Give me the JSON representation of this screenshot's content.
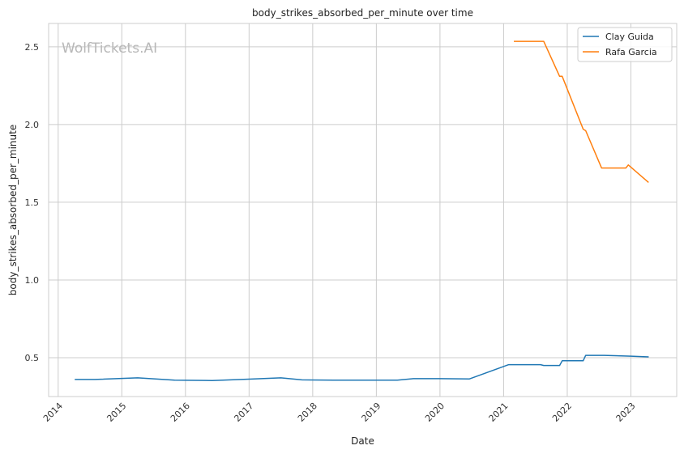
{
  "chart_data": {
    "type": "line",
    "title": "body_strikes_absorbed_per_minute over time",
    "xlabel": "Date",
    "ylabel": "body_strikes_absorbed_per_minute",
    "watermark": "WolfTickets.AI",
    "xlim": [
      2013.85,
      2023.72
    ],
    "ylim": [
      0.25,
      2.65
    ],
    "x_ticks": [
      2014,
      2015,
      2016,
      2017,
      2018,
      2019,
      2020,
      2021,
      2022,
      2023
    ],
    "x_tick_labels": [
      "2014",
      "2015",
      "2016",
      "2017",
      "2018",
      "2019",
      "2020",
      "2021",
      "2022",
      "2023"
    ],
    "y_ticks": [
      0.5,
      1.0,
      1.5,
      2.0,
      2.5
    ],
    "y_tick_labels": [
      "0.5",
      "1.0",
      "1.5",
      "2.0",
      "2.5"
    ],
    "grid": true,
    "legend_position": "top-right",
    "colors": {
      "clay": "#1f77b4",
      "rafa": "#ff7f0e",
      "grid": "#cccccc",
      "frame": "#cccccc"
    },
    "series": [
      {
        "name": "Clay Guida",
        "color": "#1f77b4",
        "x": [
          2014.27,
          2014.58,
          2015.25,
          2015.83,
          2016.42,
          2017.0,
          2017.5,
          2017.83,
          2018.33,
          2019.0,
          2019.33,
          2019.58,
          2020.0,
          2020.46,
          2021.08,
          2021.58,
          2021.63,
          2021.88,
          2021.92,
          2022.25,
          2022.29,
          2022.58,
          2023.0,
          2023.27
        ],
        "y": [
          0.36,
          0.36,
          0.37,
          0.355,
          0.353,
          0.362,
          0.37,
          0.357,
          0.355,
          0.355,
          0.355,
          0.365,
          0.365,
          0.363,
          0.455,
          0.455,
          0.45,
          0.45,
          0.48,
          0.48,
          0.515,
          0.515,
          0.51,
          0.505
        ]
      },
      {
        "name": "Rafa Garcia",
        "color": "#ff7f0e",
        "x": [
          2021.17,
          2021.63,
          2021.88,
          2021.92,
          2022.25,
          2022.29,
          2022.54,
          2022.92,
          2022.96,
          2023.27
        ],
        "y": [
          2.535,
          2.535,
          2.31,
          2.31,
          1.97,
          1.96,
          1.72,
          1.72,
          1.74,
          1.63
        ]
      }
    ]
  }
}
